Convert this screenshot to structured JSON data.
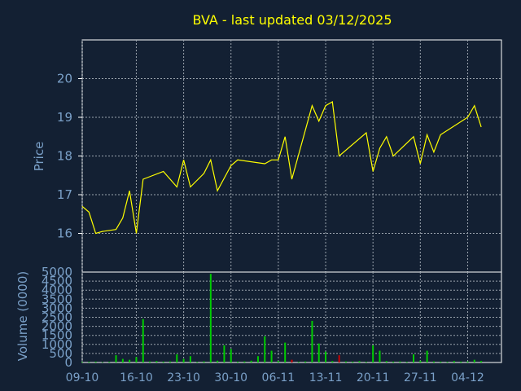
{
  "colors": {
    "background": "#132033",
    "axis": "#ffffff",
    "grid": "#9aa3ad",
    "title": "#ffff00",
    "label": "#7aa0c8",
    "price_line": "#ffff00",
    "volume_up": "#00cc00",
    "volume_down": "#cc0000"
  },
  "chart_data": [
    {
      "type": "line",
      "title": "BVA - last updated 03/12/2025",
      "ylabel": "Price",
      "ylim": [
        15,
        21
      ],
      "y_ticks": [
        "16",
        "17",
        "18",
        "19",
        "20"
      ],
      "y_tick_values": [
        16,
        17,
        18,
        19,
        20
      ],
      "grid": true,
      "x_index_range": [
        0,
        62
      ],
      "series": [
        {
          "points": [
            [
              0,
              16.7
            ],
            [
              1,
              16.55
            ],
            [
              2,
              16.0
            ],
            [
              3,
              16.05
            ],
            [
              5,
              16.1
            ],
            [
              6,
              16.4
            ],
            [
              7,
              17.1
            ],
            [
              8,
              16.0
            ],
            [
              9,
              17.4
            ],
            [
              12,
              17.6
            ],
            [
              14,
              17.2
            ],
            [
              15,
              17.9
            ],
            [
              16,
              17.2
            ],
            [
              18,
              17.55
            ],
            [
              19,
              17.9
            ],
            [
              20,
              17.1
            ],
            [
              22,
              17.75
            ],
            [
              23,
              17.9
            ],
            [
              27,
              17.8
            ],
            [
              28,
              17.9
            ],
            [
              29,
              17.9
            ],
            [
              30,
              18.5
            ],
            [
              31,
              17.4
            ],
            [
              34,
              19.3
            ],
            [
              35,
              18.9
            ],
            [
              36,
              19.3
            ],
            [
              37,
              19.4
            ],
            [
              38,
              18.0
            ],
            [
              42,
              18.6
            ],
            [
              43,
              17.6
            ],
            [
              44,
              18.2
            ],
            [
              45,
              18.5
            ],
            [
              46,
              18.0
            ],
            [
              49,
              18.5
            ],
            [
              50,
              17.8
            ],
            [
              51,
              18.55
            ],
            [
              52,
              18.1
            ],
            [
              53,
              18.55
            ],
            [
              57,
              19.0
            ],
            [
              58,
              19.3
            ],
            [
              59,
              18.75
            ]
          ]
        }
      ]
    },
    {
      "type": "bar",
      "ylabel": "Volume (0000)",
      "ylim": [
        0,
        5000
      ],
      "y_ticks": [
        "0",
        "500",
        "1000",
        "1500",
        "2000",
        "2500",
        "3000",
        "3500",
        "4000",
        "4500",
        "5000"
      ],
      "y_tick_values": [
        0,
        500,
        1000,
        1500,
        2000,
        2500,
        3000,
        3500,
        4000,
        4500,
        5000
      ],
      "x_ticks": [
        "09-10",
        "16-10",
        "23-10",
        "30-10",
        "06-11",
        "13-11",
        "20-11",
        "27-11",
        "04-12"
      ],
      "x_tick_indices": [
        0,
        8,
        15,
        22,
        29,
        36,
        43,
        50,
        57
      ],
      "grid": true,
      "bars": [
        [
          0,
          30,
          "up"
        ],
        [
          1,
          40,
          "up"
        ],
        [
          2,
          50,
          "up"
        ],
        [
          3,
          20,
          "up"
        ],
        [
          4,
          40,
          "up"
        ],
        [
          5,
          400,
          "up"
        ],
        [
          6,
          200,
          "up"
        ],
        [
          7,
          150,
          "up"
        ],
        [
          8,
          300,
          "up"
        ],
        [
          9,
          2400,
          "up"
        ],
        [
          10,
          60,
          "up"
        ],
        [
          11,
          80,
          "up"
        ],
        [
          12,
          50,
          "up"
        ],
        [
          13,
          60,
          "up"
        ],
        [
          14,
          450,
          "up"
        ],
        [
          15,
          200,
          "up"
        ],
        [
          16,
          350,
          "up"
        ],
        [
          17,
          40,
          "up"
        ],
        [
          18,
          60,
          "up"
        ],
        [
          19,
          4900,
          "up"
        ],
        [
          20,
          100,
          "up"
        ],
        [
          21,
          950,
          "up"
        ],
        [
          22,
          750,
          "up"
        ],
        [
          23,
          50,
          "up"
        ],
        [
          24,
          60,
          "up"
        ],
        [
          25,
          100,
          "up"
        ],
        [
          26,
          350,
          "up"
        ],
        [
          27,
          1450,
          "up"
        ],
        [
          28,
          650,
          "up"
        ],
        [
          29,
          80,
          "up"
        ],
        [
          30,
          1100,
          "up"
        ],
        [
          31,
          150,
          "down"
        ],
        [
          32,
          40,
          "up"
        ],
        [
          33,
          60,
          "up"
        ],
        [
          34,
          2300,
          "up"
        ],
        [
          35,
          1050,
          "up"
        ],
        [
          36,
          600,
          "up"
        ],
        [
          37,
          80,
          "up"
        ],
        [
          38,
          400,
          "down"
        ],
        [
          39,
          60,
          "up"
        ],
        [
          40,
          50,
          "up"
        ],
        [
          41,
          80,
          "up"
        ],
        [
          42,
          40,
          "up"
        ],
        [
          43,
          950,
          "up"
        ],
        [
          44,
          650,
          "up"
        ],
        [
          45,
          80,
          "up"
        ],
        [
          46,
          50,
          "up"
        ],
        [
          47,
          60,
          "up"
        ],
        [
          48,
          40,
          "up"
        ],
        [
          49,
          450,
          "up"
        ],
        [
          50,
          100,
          "up"
        ],
        [
          51,
          650,
          "up"
        ],
        [
          52,
          60,
          "up"
        ],
        [
          53,
          50,
          "up"
        ],
        [
          54,
          40,
          "up"
        ],
        [
          55,
          80,
          "up"
        ],
        [
          56,
          50,
          "up"
        ],
        [
          57,
          60,
          "up"
        ],
        [
          58,
          150,
          "up"
        ],
        [
          59,
          80,
          "up"
        ]
      ]
    }
  ]
}
